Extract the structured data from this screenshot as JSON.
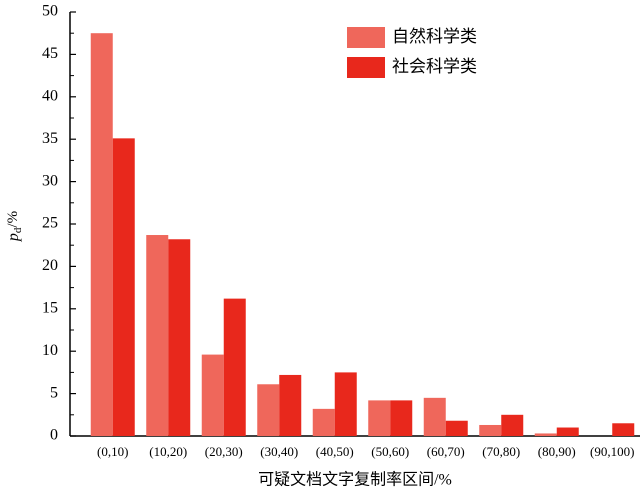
{
  "chart_data": {
    "type": "bar",
    "y_label": {
      "main": "p",
      "sub": "d",
      "unit": "/%"
    },
    "x_label": "可疑文档文字复制率区间/%",
    "categories": [
      "(0,10)",
      "(10,20)",
      "(20,30)",
      "(30,40)",
      "(40,50)",
      "(50,60)",
      "(60,70)",
      "(70,80)",
      "(80,90)",
      "(90,100)"
    ],
    "series": [
      {
        "name": "自然科学类",
        "color": "#ef675b",
        "values": [
          47.5,
          23.7,
          9.6,
          6.1,
          3.2,
          4.2,
          4.5,
          1.3,
          0.3,
          0
        ]
      },
      {
        "name": "社会科学类",
        "color": "#e8281c",
        "values": [
          35.1,
          23.2,
          16.2,
          7.2,
          7.5,
          4.2,
          1.8,
          2.5,
          1.0,
          1.5
        ]
      }
    ],
    "ylim": [
      0,
      50
    ],
    "yticks": [
      0,
      5,
      10,
      15,
      20,
      25,
      30,
      35,
      40,
      45,
      50
    ],
    "legend": "upper right"
  }
}
